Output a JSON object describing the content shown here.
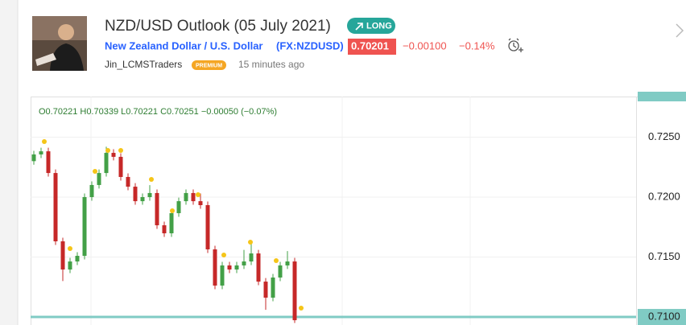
{
  "header": {
    "title": "NZD/USD Outlook (05 July 2021)",
    "badge": "LONG",
    "symbol_name": "New Zealand Dollar / U.S. Dollar",
    "symbol_code": "(FX:NZDUSD)",
    "price": "0.70201",
    "change": "−0.00100",
    "change_pct": "−0.14%",
    "author": "Jin_LCMSTraders",
    "author_badge": "PREMIUM",
    "time_ago": "15 minutes ago"
  },
  "chart_data": {
    "type": "candlestick",
    "ohlc_legend": "O0.70221 H0.70339 L0.70221 C0.70251 −0.00050 (−0.07%)",
    "open": [
      0.723,
      0.72356,
      0.72382,
      0.72201,
      0.71631,
      0.71396,
      0.71463,
      0.7151,
      0.72,
      0.72101,
      0.72201,
      0.72369,
      0.72336,
      0.72168,
      0.72087,
      0.71966,
      0.72,
      0.72034,
      0.71765,
      0.71698,
      0.71866,
      0.71966,
      0.72034,
      0.71966,
      0.71933,
      0.71564,
      0.71262,
      0.7143,
      0.71396,
      0.7143,
      0.71463,
      0.7153,
      0.71295,
      0.71161,
      0.71329,
      0.7143,
      0.71463
    ],
    "high": [
      0.72386,
      0.72412,
      0.72412,
      0.72231,
      0.71661,
      0.71493,
      0.7154,
      0.7203,
      0.72131,
      0.72231,
      0.7242,
      0.72399,
      0.72366,
      0.72198,
      0.72117,
      0.7203,
      0.721,
      0.72064,
      0.71795,
      0.71896,
      0.71996,
      0.72064,
      0.72064,
      0.7203,
      0.71963,
      0.71594,
      0.7146,
      0.7146,
      0.7146,
      0.7156,
      0.7162,
      0.7156,
      0.71325,
      0.71359,
      0.7146,
      0.7155,
      0.71493
    ],
    "low": [
      0.7227,
      0.72326,
      0.72171,
      0.71601,
      0.713,
      0.71366,
      0.71433,
      0.7148,
      0.7197,
      0.72071,
      0.72171,
      0.72306,
      0.72138,
      0.72057,
      0.71936,
      0.71936,
      0.7197,
      0.71735,
      0.71668,
      0.71668,
      0.71836,
      0.71936,
      0.71936,
      0.71903,
      0.71534,
      0.71232,
      0.71232,
      0.71366,
      0.71366,
      0.714,
      0.71433,
      0.71265,
      0.7106,
      0.71131,
      0.71299,
      0.714,
      0.7095
    ],
    "close": [
      0.72356,
      0.72382,
      0.72201,
      0.71631,
      0.71396,
      0.71463,
      0.7151,
      0.72,
      0.72101,
      0.72201,
      0.72369,
      0.72336,
      0.72168,
      0.72087,
      0.71966,
      0.72,
      0.72034,
      0.71765,
      0.71698,
      0.71866,
      0.71966,
      0.72034,
      0.71966,
      0.71933,
      0.71564,
      0.71262,
      0.7143,
      0.71396,
      0.7143,
      0.71463,
      0.7153,
      0.71295,
      0.71161,
      0.71329,
      0.7143,
      0.71463,
      0.70973
    ],
    "up_color": "#43a047",
    "down_color": "#c62828",
    "ylim": [
      0.70933,
      0.72839
    ],
    "yticks": [
      {
        "value": 0.71,
        "label": "0.7100"
      },
      {
        "value": 0.715,
        "label": "0.7150"
      },
      {
        "value": 0.72,
        "label": "0.7200"
      },
      {
        "value": 0.725,
        "label": "0.7250"
      }
    ],
    "grid": true,
    "hline": 0.71,
    "hline_color": "#80cbc4"
  }
}
